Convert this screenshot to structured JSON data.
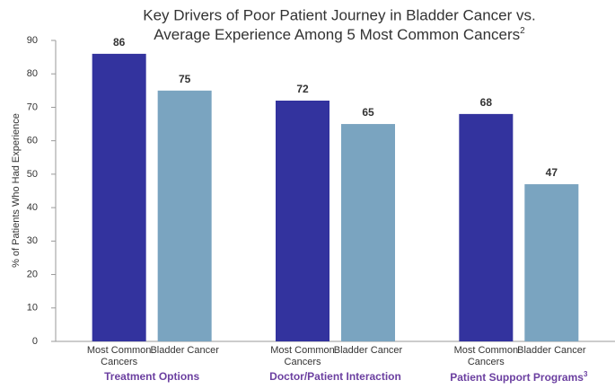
{
  "chart_data": {
    "type": "bar",
    "title": [
      "Key Drivers of Poor Patient Journey in Bladder Cancer vs.",
      "Average Experience Among 5 Most Common Cancers"
    ],
    "title_superscript": "2",
    "y_label": "% of Patients Who Had Experience",
    "categories": [
      "Treatment Options",
      "Doctor/Patient Interaction",
      "Patient Support Programs"
    ],
    "category_superscripts": [
      null,
      null,
      "3"
    ],
    "category_color": "#6b3fa0",
    "series": [
      {
        "name": "Most Common Cancers",
        "color": "#33339e",
        "values": [
          86,
          72,
          68
        ]
      },
      {
        "name": "Bladder Cancer",
        "color": "#7aa4c0",
        "values": [
          75,
          65,
          47
        ]
      }
    ],
    "ylim": [
      0,
      90
    ],
    "yticks": [
      0,
      10,
      20,
      30,
      40,
      50,
      60,
      70,
      80,
      90
    ],
    "grid": false
  }
}
